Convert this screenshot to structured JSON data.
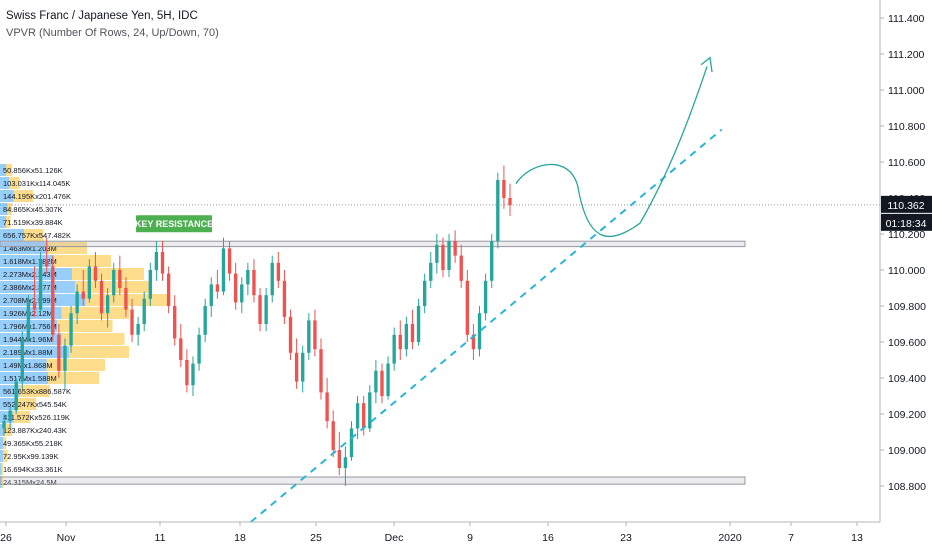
{
  "header": {
    "title": "Swiss Franc / Japanese Yen, 5H, IDC",
    "indicator": "VPVR (Number Of Rows, 24, Up/Down, 70)"
  },
  "badges": {
    "price": "110.362",
    "countdown": "01:18:34"
  },
  "annotation": {
    "label": "KEY RESISTANCE"
  },
  "colors": {
    "up": "#26a69a",
    "down": "#ef5350",
    "vp_up": "#42a5f5",
    "vp_down": "#fbc02d",
    "trendline": "#29b6d6",
    "projection": "#26a69a",
    "badge_price": "#131722",
    "badge_countdown": "#131722",
    "resistance_label": "#4caf50"
  },
  "chart_data": {
    "type": "candlestick",
    "ylim": [
      108.6,
      111.5
    ],
    "y_ticks": [
      111.4,
      111.2,
      111.0,
      110.8,
      110.6,
      110.4,
      110.2,
      110.0,
      109.8,
      109.6,
      109.4,
      109.2,
      109.0,
      108.8
    ],
    "y_tick_labels": [
      "111.400",
      "111.200",
      "111.000",
      "110.800",
      "110.600",
      "110.400",
      "110.200",
      "110.000",
      "109.800",
      "109.600",
      "109.400",
      "109.200",
      "109.000",
      "108.800"
    ],
    "x_labels": [
      "26",
      "Nov",
      "11",
      "18",
      "25",
      "Dec",
      "9",
      "16",
      "23",
      "2020",
      "7",
      "13"
    ],
    "current_price": 110.362,
    "resistance_zone": [
      110.13,
      110.16
    ],
    "support_zone": [
      108.81,
      108.85
    ],
    "trendline": {
      "from": [
        0.285,
        108.6
      ],
      "to": [
        0.82,
        110.78
      ]
    },
    "projection_path_prices": [
      110.48,
      110.6,
      110.16,
      110.2,
      110.7,
      111.18
    ],
    "candles": [
      [
        109.12,
        109.2,
        109.08,
        109.16
      ],
      [
        109.16,
        109.24,
        109.12,
        109.22
      ],
      [
        109.22,
        109.4,
        109.2,
        109.38
      ],
      [
        109.38,
        109.66,
        109.34,
        109.62
      ],
      [
        109.62,
        109.86,
        109.6,
        109.82
      ],
      [
        109.82,
        110.02,
        109.74,
        109.78
      ],
      [
        109.78,
        110.1,
        109.76,
        110.06
      ],
      [
        110.06,
        110.18,
        109.98,
        110.02
      ],
      [
        110.02,
        110.08,
        109.6,
        109.64
      ],
      [
        109.64,
        109.7,
        109.4,
        109.44
      ],
      [
        109.44,
        109.62,
        109.34,
        109.58
      ],
      [
        109.58,
        109.8,
        109.54,
        109.76
      ],
      [
        109.76,
        109.92,
        109.7,
        109.88
      ],
      [
        109.88,
        110.0,
        109.8,
        109.84
      ],
      [
        109.84,
        110.06,
        109.82,
        110.02
      ],
      [
        110.02,
        110.1,
        109.9,
        109.94
      ],
      [
        109.94,
        109.98,
        109.72,
        109.76
      ],
      [
        109.76,
        109.9,
        109.68,
        109.86
      ],
      [
        109.86,
        110.04,
        109.82,
        110.0
      ],
      [
        110.0,
        110.08,
        109.86,
        109.9
      ],
      [
        109.9,
        109.96,
        109.74,
        109.78
      ],
      [
        109.78,
        109.84,
        109.6,
        109.64
      ],
      [
        109.64,
        109.74,
        109.58,
        109.7
      ],
      [
        109.7,
        109.88,
        109.66,
        109.84
      ],
      [
        109.84,
        110.04,
        109.8,
        110.0
      ],
      [
        110.0,
        110.16,
        109.94,
        110.1
      ],
      [
        110.1,
        110.16,
        109.94,
        109.98
      ],
      [
        109.98,
        110.02,
        109.76,
        109.8
      ],
      [
        109.8,
        109.86,
        109.58,
        109.62
      ],
      [
        109.62,
        109.7,
        109.46,
        109.5
      ],
      [
        109.5,
        109.56,
        109.32,
        109.36
      ],
      [
        109.36,
        109.52,
        109.3,
        109.48
      ],
      [
        109.48,
        109.68,
        109.44,
        109.64
      ],
      [
        109.64,
        109.84,
        109.6,
        109.8
      ],
      [
        109.8,
        109.96,
        109.74,
        109.92
      ],
      [
        109.92,
        110.0,
        109.84,
        109.88
      ],
      [
        109.88,
        110.18,
        109.86,
        110.12
      ],
      [
        110.12,
        110.16,
        109.94,
        109.98
      ],
      [
        109.98,
        110.04,
        109.78,
        109.82
      ],
      [
        109.82,
        109.96,
        109.76,
        109.92
      ],
      [
        109.92,
        110.04,
        109.86,
        110.0
      ],
      [
        110.0,
        110.06,
        109.82,
        109.86
      ],
      [
        109.86,
        109.9,
        109.66,
        109.7
      ],
      [
        109.7,
        109.9,
        109.66,
        109.86
      ],
      [
        109.86,
        110.08,
        109.82,
        110.04
      ],
      [
        110.04,
        110.1,
        109.9,
        109.94
      ],
      [
        109.94,
        110.0,
        109.7,
        109.74
      ],
      [
        109.74,
        109.78,
        109.5,
        109.54
      ],
      [
        109.54,
        109.62,
        109.34,
        109.38
      ],
      [
        109.38,
        109.58,
        109.32,
        109.54
      ],
      [
        109.54,
        109.76,
        109.5,
        109.72
      ],
      [
        109.72,
        109.78,
        109.52,
        109.56
      ],
      [
        109.56,
        109.62,
        109.28,
        109.32
      ],
      [
        109.32,
        109.4,
        109.12,
        109.16
      ],
      [
        109.16,
        109.22,
        108.96,
        109.0
      ],
      [
        109.0,
        109.1,
        108.86,
        108.9
      ],
      [
        108.9,
        109.02,
        108.8,
        108.96
      ],
      [
        108.96,
        109.16,
        108.94,
        109.12
      ],
      [
        109.12,
        109.3,
        109.06,
        109.26
      ],
      [
        109.26,
        109.3,
        109.08,
        109.12
      ],
      [
        109.12,
        109.36,
        109.1,
        109.32
      ],
      [
        109.32,
        109.5,
        109.26,
        109.44
      ],
      [
        109.44,
        109.48,
        109.26,
        109.3
      ],
      [
        109.3,
        109.52,
        109.28,
        109.48
      ],
      [
        109.48,
        109.68,
        109.44,
        109.64
      ],
      [
        109.64,
        109.72,
        109.5,
        109.56
      ],
      [
        109.56,
        109.74,
        109.52,
        109.7
      ],
      [
        109.7,
        109.78,
        109.56,
        109.6
      ],
      [
        109.6,
        109.84,
        109.58,
        109.8
      ],
      [
        109.8,
        109.98,
        109.76,
        109.94
      ],
      [
        109.94,
        110.1,
        109.9,
        110.04
      ],
      [
        110.04,
        110.2,
        109.98,
        110.14
      ],
      [
        110.14,
        110.18,
        109.96,
        110.0
      ],
      [
        110.0,
        110.2,
        109.96,
        110.16
      ],
      [
        110.16,
        110.22,
        110.04,
        110.08
      ],
      [
        110.08,
        110.14,
        109.9,
        109.94
      ],
      [
        109.94,
        110.0,
        109.6,
        109.64
      ],
      [
        109.64,
        109.7,
        109.5,
        109.56
      ],
      [
        109.56,
        109.8,
        109.52,
        109.76
      ],
      [
        109.76,
        109.98,
        109.72,
        109.94
      ],
      [
        109.94,
        110.2,
        109.9,
        110.16
      ],
      [
        110.16,
        110.54,
        110.12,
        110.5
      ],
      [
        110.5,
        110.58,
        110.34,
        110.4
      ],
      [
        110.4,
        110.48,
        110.3,
        110.36
      ]
    ],
    "volume_profile_labels": [
      "50.856Kx51.126K",
      "103.031Kx114.045K",
      "144.195Kx201.476K",
      "84.865Kx45.307K",
      "71.519Kx39.884K",
      "656.757Kx547.482K",
      "1.463Mx1.203M",
      "1.618Mx1.782M",
      "2.273Mx2.243M",
      "2.386Mx2.377M",
      "2.708Mx2.599M",
      "1.926Mx2.12M",
      "1.796Mx1.756M",
      "1.944Mx1.96M",
      "2.189Mx1.88M",
      "1.49Mx1.868M",
      "1.517Mx1.588M",
      "561.653Kx886.587K",
      "552.247Kx545.54K",
      "411.572Kx526.119K",
      "123.887Kx240.43K",
      "49.365Kx55.218K",
      "72.95Kx99.139K",
      "16.694Kx33.361K",
      "24.315Mx24.5M"
    ],
    "volume_profile_up": [
      0.04,
      0.06,
      0.09,
      0.05,
      0.04,
      0.16,
      0.32,
      0.36,
      0.48,
      0.5,
      0.57,
      0.41,
      0.38,
      0.41,
      0.46,
      0.31,
      0.32,
      0.13,
      0.12,
      0.09,
      0.03,
      0.02,
      0.02,
      0.01,
      0.01
    ],
    "volume_profile_down": [
      0.04,
      0.07,
      0.13,
      0.03,
      0.03,
      0.13,
      0.26,
      0.38,
      0.48,
      0.5,
      0.55,
      0.45,
      0.37,
      0.42,
      0.4,
      0.39,
      0.34,
      0.2,
      0.12,
      0.11,
      0.05,
      0.02,
      0.03,
      0.01,
      0.01
    ]
  }
}
